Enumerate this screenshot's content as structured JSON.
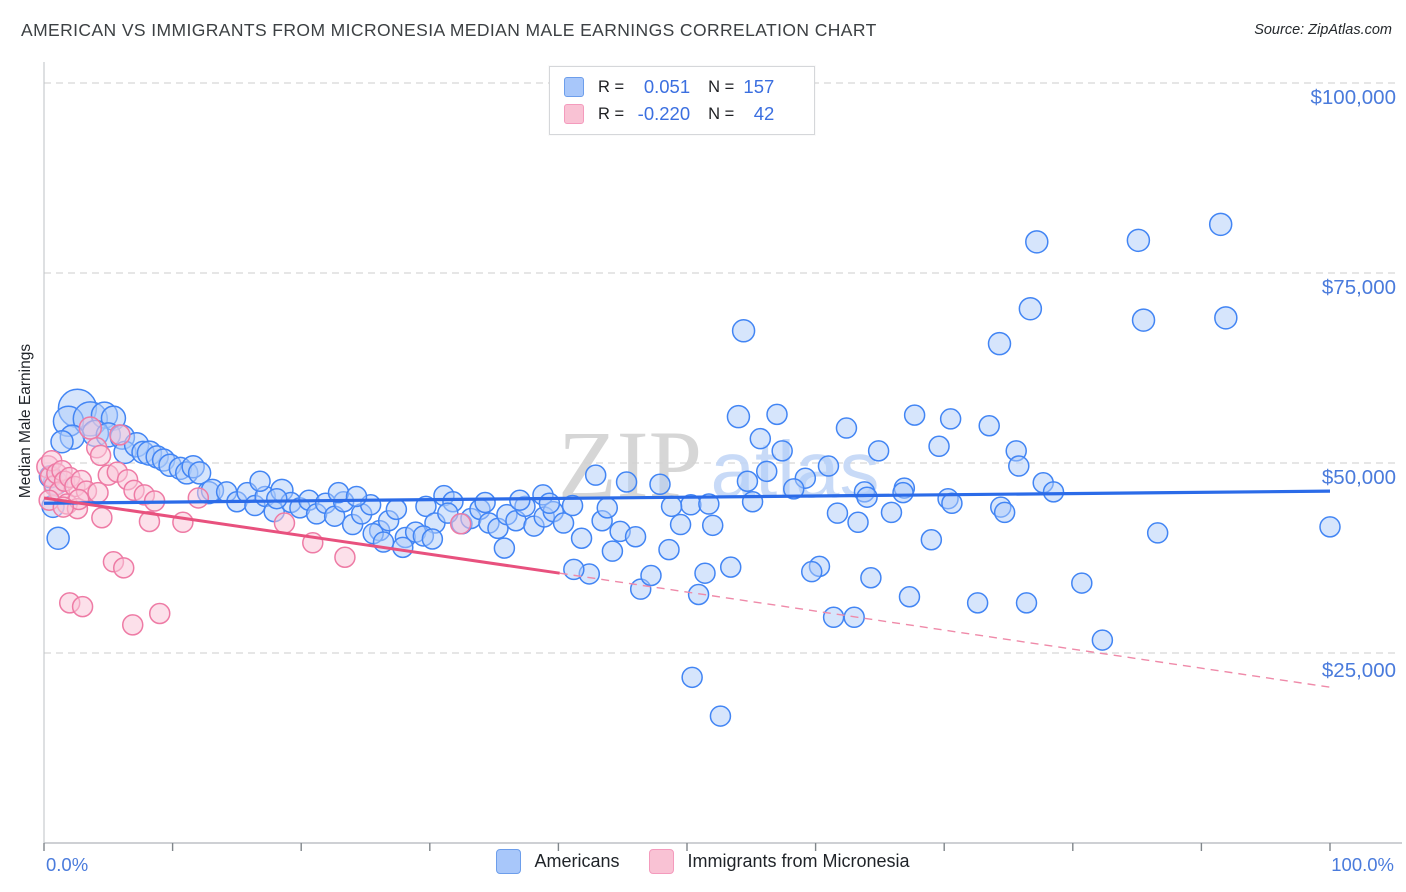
{
  "title": "AMERICAN VS IMMIGRANTS FROM MICRONESIA MEDIAN MALE EARNINGS CORRELATION CHART",
  "source": "Source: ZipAtlas.com",
  "watermark": {
    "part1": "ZIP",
    "part2": "atlas"
  },
  "y_axis": {
    "label": "Median Male Earnings",
    "ticks": [
      {
        "value": 100000,
        "label": "$100,000"
      },
      {
        "value": 75000,
        "label": "$75,000"
      },
      {
        "value": 50000,
        "label": "$50,000"
      },
      {
        "value": 25000,
        "label": "$25,000"
      }
    ]
  },
  "x_axis": {
    "left_label": "0.0%",
    "right_label": "100.0%",
    "tick_percents": [
      0,
      10,
      20,
      30,
      40,
      50,
      60,
      70,
      80,
      90,
      100
    ]
  },
  "legend_box": {
    "rows": [
      {
        "series": "Americans",
        "r_label": "R =",
        "r_value": "0.051",
        "n_label": "N =",
        "n_value": "157"
      },
      {
        "series": "Immigrants from Micronesia",
        "r_label": "R =",
        "r_value": "-0.220",
        "n_label": "N =",
        "n_value": "42"
      }
    ]
  },
  "bottom_legend": [
    {
      "label": "Americans"
    },
    {
      "label": "Immigrants from Micronesia"
    }
  ],
  "colors": {
    "blue_fill": "#aecbfa",
    "blue_stroke": "#4285f4",
    "pink_fill": "#f9c6d8",
    "pink_stroke": "#ee7ba5",
    "blue_trend": "#2b6be8",
    "pink_trend": "#e8517e",
    "pink_trend_dash": "#ef8aa9",
    "gridline": "#d8d8d8",
    "axis_line": "#bdc1c6",
    "tick_mark": "#80868b",
    "axis_label_blue": "#4a7bdc",
    "title_text": "#3c4043",
    "watermark_gray": "#d2d2d2",
    "watermark_blue": "#c3d7f7"
  },
  "chart_data": {
    "type": "scatter",
    "x_unit": "percent",
    "y_unit": "dollars",
    "x_range": [
      0,
      100
    ],
    "y_range": [
      0,
      105000
    ],
    "grid": "horizontal-dashed",
    "legend_position": "bottom",
    "series": [
      {
        "name": "Americans",
        "R": 0.051,
        "N": 157,
        "points": [
          [
            2.6,
            57200,
            19
          ],
          [
            1.9,
            55500,
            15
          ],
          [
            3.6,
            55800,
            17
          ],
          [
            4.7,
            56300,
            13
          ],
          [
            5.4,
            55900,
            12
          ],
          [
            4.0,
            53900,
            13
          ],
          [
            5.0,
            53700,
            12
          ],
          [
            2.2,
            53400,
            12
          ],
          [
            1.4,
            52800,
            11
          ],
          [
            6.1,
            53400,
            12
          ],
          [
            6.3,
            51400,
            11
          ],
          [
            7.2,
            52400,
            12
          ],
          [
            7.7,
            51400,
            11
          ],
          [
            8.2,
            51300,
            12
          ],
          [
            8.8,
            50800,
            11
          ],
          [
            9.3,
            50400,
            11
          ],
          [
            9.8,
            49700,
            11
          ],
          [
            10.6,
            49300,
            11
          ],
          [
            11.1,
            48700,
            11
          ],
          [
            11.6,
            49500,
            11
          ],
          [
            12.1,
            48700,
            11
          ],
          [
            12.8,
            46100,
            11
          ],
          [
            13.1,
            46400,
            11
          ],
          [
            0.9,
            47400,
            12
          ],
          [
            0.7,
            44300,
            11
          ],
          [
            1.1,
            40100,
            11
          ],
          [
            0.5,
            48200,
            11
          ],
          [
            14.2,
            46200,
            10
          ],
          [
            15.0,
            44900,
            10
          ],
          [
            15.8,
            46100,
            10
          ],
          [
            16.4,
            44400,
            10
          ],
          [
            17.2,
            45600,
            10
          ],
          [
            17.9,
            43600,
            10
          ],
          [
            18.5,
            46400,
            11
          ],
          [
            19.2,
            44800,
            10
          ],
          [
            19.9,
            44100,
            10
          ],
          [
            20.6,
            45100,
            10
          ],
          [
            21.2,
            43300,
            10
          ],
          [
            21.9,
            44700,
            10
          ],
          [
            22.6,
            43000,
            10
          ],
          [
            23.3,
            44900,
            10
          ],
          [
            24.0,
            41900,
            10
          ],
          [
            24.7,
            43300,
            10
          ],
          [
            25.4,
            44500,
            10
          ],
          [
            26.1,
            41100,
            10
          ],
          [
            26.8,
            42400,
            10
          ],
          [
            27.4,
            43900,
            10
          ],
          [
            28.1,
            40200,
            10
          ],
          [
            28.9,
            40900,
            10
          ],
          [
            29.7,
            44300,
            10
          ],
          [
            30.4,
            42100,
            10
          ],
          [
            31.1,
            45700,
            10
          ],
          [
            31.8,
            44900,
            10
          ],
          [
            32.5,
            42000,
            10
          ],
          [
            33.2,
            42700,
            10
          ],
          [
            33.9,
            43900,
            10
          ],
          [
            34.6,
            42100,
            10
          ],
          [
            35.3,
            41400,
            10
          ],
          [
            36.0,
            43200,
            10
          ],
          [
            36.7,
            42400,
            10
          ],
          [
            37.4,
            44300,
            10
          ],
          [
            38.1,
            41700,
            10
          ],
          [
            38.9,
            42900,
            10
          ],
          [
            39.6,
            43600,
            10
          ],
          [
            40.4,
            42100,
            10
          ],
          [
            41.1,
            44400,
            10
          ],
          [
            41.8,
            40100,
            10
          ],
          [
            25.6,
            40700,
            10
          ],
          [
            26.4,
            39600,
            10
          ],
          [
            27.9,
            38900,
            10
          ],
          [
            29.5,
            40400,
            10
          ],
          [
            30.2,
            40000,
            10
          ],
          [
            42.9,
            48400,
            10
          ],
          [
            45.3,
            47500,
            10
          ],
          [
            47.9,
            47200,
            10
          ],
          [
            38.8,
            45800,
            10
          ],
          [
            43.4,
            42400,
            10
          ],
          [
            44.2,
            38400,
            10
          ],
          [
            42.4,
            35400,
            10
          ],
          [
            41.2,
            36000,
            10
          ],
          [
            46.4,
            33400,
            10
          ],
          [
            47.2,
            35200,
            10
          ],
          [
            51.4,
            35500,
            10
          ],
          [
            53.4,
            36300,
            10
          ],
          [
            50.9,
            32700,
            10
          ],
          [
            35.8,
            38800,
            10
          ],
          [
            44.8,
            41000,
            10
          ],
          [
            46.0,
            40300,
            10
          ],
          [
            48.6,
            38600,
            10
          ],
          [
            49.5,
            41900,
            10
          ],
          [
            50.3,
            44500,
            10
          ],
          [
            52.0,
            41800,
            10
          ],
          [
            48.8,
            44300,
            10
          ],
          [
            51.7,
            44600,
            10
          ],
          [
            54.0,
            56100,
            11
          ],
          [
            57.0,
            56400,
            10
          ],
          [
            55.7,
            53200,
            10
          ],
          [
            57.4,
            51600,
            10
          ],
          [
            62.4,
            54600,
            10
          ],
          [
            67.7,
            56300,
            10
          ],
          [
            70.5,
            55800,
            10
          ],
          [
            69.6,
            52200,
            10
          ],
          [
            73.5,
            54900,
            10
          ],
          [
            75.6,
            51600,
            10
          ],
          [
            75.8,
            49600,
            10
          ],
          [
            64.9,
            51600,
            10
          ],
          [
            61.0,
            49600,
            10
          ],
          [
            56.2,
            48900,
            10
          ],
          [
            59.2,
            48000,
            10
          ],
          [
            54.7,
            47600,
            10
          ],
          [
            63.8,
            46200,
            10
          ],
          [
            66.9,
            46700,
            10
          ],
          [
            70.3,
            45300,
            10
          ],
          [
            74.4,
            44200,
            10
          ],
          [
            54.4,
            67400,
            11
          ],
          [
            77.2,
            79100,
            11
          ],
          [
            85.1,
            79300,
            11
          ],
          [
            91.5,
            81400,
            11
          ],
          [
            76.7,
            70300,
            11
          ],
          [
            85.5,
            68800,
            11
          ],
          [
            91.9,
            69100,
            11
          ],
          [
            74.3,
            65700,
            11
          ],
          [
            61.7,
            43400,
            10
          ],
          [
            63.3,
            42200,
            10
          ],
          [
            65.9,
            43500,
            10
          ],
          [
            64.0,
            45500,
            10
          ],
          [
            66.8,
            46100,
            10
          ],
          [
            70.6,
            44700,
            10
          ],
          [
            74.7,
            43500,
            10
          ],
          [
            69.0,
            39900,
            10
          ],
          [
            60.3,
            36400,
            10
          ],
          [
            59.7,
            35700,
            10
          ],
          [
            64.3,
            34900,
            10
          ],
          [
            67.3,
            32400,
            10
          ],
          [
            61.4,
            29700,
            10
          ],
          [
            63.0,
            29700,
            10
          ],
          [
            72.6,
            31600,
            10
          ],
          [
            76.4,
            31600,
            10
          ],
          [
            77.7,
            47400,
            10
          ],
          [
            78.5,
            46200,
            10
          ],
          [
            80.7,
            34200,
            10
          ],
          [
            82.3,
            26700,
            10
          ],
          [
            86.6,
            40800,
            10
          ],
          [
            100.0,
            41600,
            10
          ],
          [
            50.4,
            21800,
            10
          ],
          [
            52.6,
            16700,
            10
          ],
          [
            16.8,
            47600,
            10
          ],
          [
            18.1,
            45300,
            10
          ],
          [
            22.9,
            46100,
            10
          ],
          [
            24.3,
            45600,
            10
          ],
          [
            31.4,
            43400,
            10
          ],
          [
            34.3,
            44800,
            10
          ],
          [
            37.0,
            45100,
            10
          ],
          [
            39.3,
            44700,
            10
          ],
          [
            43.8,
            44100,
            10
          ],
          [
            55.1,
            44900,
            10
          ],
          [
            58.3,
            46600,
            10
          ]
        ]
      },
      {
        "name": "Immigrants from Micronesia",
        "R": -0.22,
        "N": 42,
        "points": [
          [
            0.3,
            49500,
            11
          ],
          [
            0.5,
            48200,
            10
          ],
          [
            0.6,
            50300,
            10
          ],
          [
            0.8,
            47000,
            10
          ],
          [
            1.0,
            48600,
            10
          ],
          [
            1.2,
            46200,
            10
          ],
          [
            1.4,
            49000,
            10
          ],
          [
            1.6,
            47600,
            10
          ],
          [
            0.4,
            45100,
            10
          ],
          [
            2.0,
            48100,
            10
          ],
          [
            2.4,
            46900,
            10
          ],
          [
            2.9,
            47700,
            10
          ],
          [
            3.3,
            46300,
            10
          ],
          [
            1.8,
            44600,
            10
          ],
          [
            2.6,
            44000,
            10
          ],
          [
            3.6,
            54600,
            11
          ],
          [
            5.9,
            53700,
            10
          ],
          [
            4.1,
            52000,
            10
          ],
          [
            4.4,
            51000,
            10
          ],
          [
            5.0,
            48400,
            10
          ],
          [
            5.7,
            48800,
            10
          ],
          [
            6.5,
            47800,
            10
          ],
          [
            4.2,
            46100,
            10
          ],
          [
            2.7,
            45200,
            10
          ],
          [
            1.5,
            44200,
            10
          ],
          [
            4.5,
            42800,
            10
          ],
          [
            7.0,
            46400,
            10
          ],
          [
            7.8,
            45800,
            10
          ],
          [
            8.6,
            45000,
            10
          ],
          [
            10.8,
            42200,
            10
          ],
          [
            12.0,
            45400,
            10
          ],
          [
            8.2,
            42300,
            10
          ],
          [
            5.4,
            37000,
            10
          ],
          [
            6.2,
            36200,
            10
          ],
          [
            2.0,
            31600,
            10
          ],
          [
            3.0,
            31100,
            10
          ],
          [
            6.9,
            28700,
            10
          ],
          [
            9.0,
            30200,
            10
          ],
          [
            18.7,
            42100,
            10
          ],
          [
            20.9,
            39500,
            10
          ],
          [
            23.4,
            37600,
            10
          ],
          [
            32.4,
            42000,
            10
          ]
        ]
      }
    ],
    "trend_lines": [
      {
        "series": "Americans",
        "style": "solid",
        "x1": 0,
        "y1": 44700,
        "x2": 100,
        "y2": 46300
      },
      {
        "series": "Immigrants from Micronesia",
        "style": "solid-then-dashed",
        "solid": {
          "x1": 0,
          "y1": 45400,
          "x2": 40.1,
          "y2": 35500
        },
        "dashed": {
          "x1": 40.1,
          "y1": 35500,
          "x2": 100,
          "y2": 20500
        }
      }
    ]
  }
}
